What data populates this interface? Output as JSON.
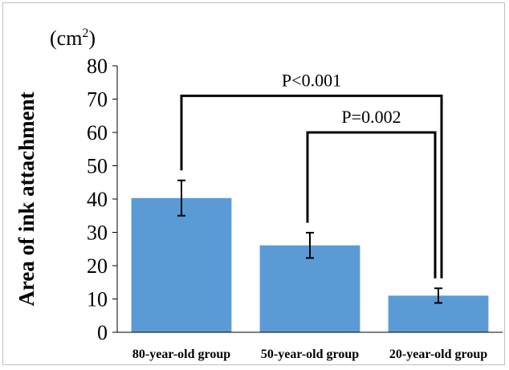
{
  "chart_data": {
    "type": "bar",
    "categories": [
      "80-year-old group",
      "50-year-old group",
      "20-year-old group"
    ],
    "values": [
      40.3,
      26.1,
      11.0
    ],
    "errors": [
      5.3,
      3.8,
      2.2
    ],
    "ylabel": "Area of ink attachment",
    "unit_label": "(cm",
    "unit_superscript": "2",
    "unit_close": ")",
    "ylim": [
      0,
      80
    ],
    "yticks": [
      0,
      10,
      20,
      30,
      40,
      50,
      60,
      70,
      80
    ],
    "grid": false,
    "bar_color": "#5b9bd5",
    "annotations": [
      {
        "text": "P<0.001",
        "from": "80-year-old group",
        "to": "20-year-old group",
        "level": 71
      },
      {
        "text": "P=0.002",
        "from": "50-year-old group",
        "to": "20-year-old group",
        "level": 60
      }
    ]
  }
}
